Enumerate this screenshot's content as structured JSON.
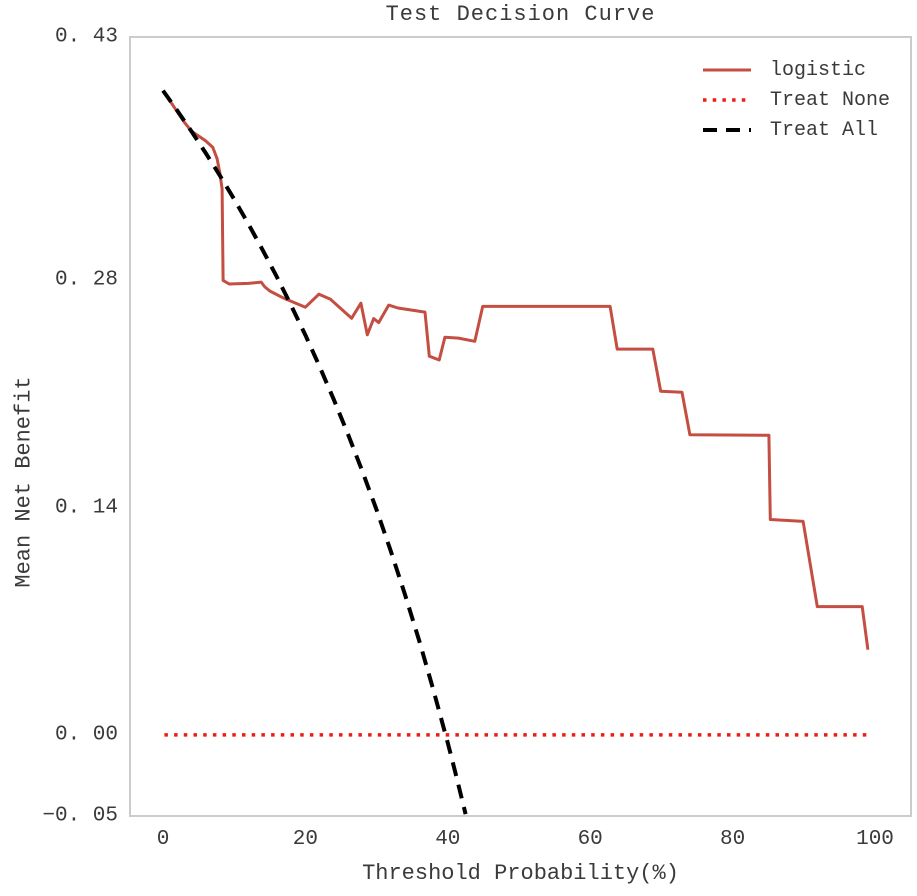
{
  "chart_data": {
    "type": "line",
    "title": "Test Decision Curve",
    "xlabel": "Threshold Probability(%)",
    "ylabel": "Mean Net Benefit",
    "xlim": [
      -4.63,
      105.06
    ],
    "ylim": [
      -0.05,
      0.43
    ],
    "grid": false,
    "legend_position": "upper right",
    "colors": {
      "text": "#3a3a3a",
      "spine": "#cccccc",
      "background": "#ffffff"
    },
    "xticks": [
      {
        "value": 0,
        "label": "0"
      },
      {
        "value": 20,
        "label": "20"
      },
      {
        "value": 40,
        "label": "40"
      },
      {
        "value": 60,
        "label": "60"
      },
      {
        "value": 80,
        "label": "80"
      },
      {
        "value": 100,
        "label": "100"
      }
    ],
    "yticks": [
      {
        "value": 0.43,
        "label": "0. 43"
      },
      {
        "value": 0.28,
        "label": "0. 28"
      },
      {
        "value": 0.14,
        "label": "0. 14"
      },
      {
        "value": 0.0,
        "label": "0. 00"
      },
      {
        "value": -0.05,
        "label": "−0. 05"
      }
    ],
    "series": [
      {
        "name": "logistic",
        "color": "#c44e42",
        "style": "solid",
        "width": 3,
        "points": [
          [
            0,
            0.397
          ],
          [
            1,
            0.3905
          ],
          [
            2,
            0.384
          ],
          [
            3,
            0.3775
          ],
          [
            4,
            0.372
          ],
          [
            5,
            0.369
          ],
          [
            6,
            0.366
          ],
          [
            7,
            0.362
          ],
          [
            7.6,
            0.355
          ],
          [
            8.0,
            0.346
          ],
          [
            8.3,
            0.3364
          ],
          [
            8.45,
            0.28
          ],
          [
            9.3,
            0.2778
          ],
          [
            12,
            0.2782
          ],
          [
            13.8,
            0.279
          ],
          [
            14.3,
            0.276
          ],
          [
            15,
            0.2735
          ],
          [
            17,
            0.269
          ],
          [
            20,
            0.2635
          ],
          [
            21.9,
            0.2715
          ],
          [
            23.5,
            0.2685
          ],
          [
            26.5,
            0.2567
          ],
          [
            27.8,
            0.266
          ],
          [
            28.7,
            0.2465
          ],
          [
            29.6,
            0.2565
          ],
          [
            30.3,
            0.254
          ],
          [
            31.7,
            0.2648
          ],
          [
            33,
            0.263
          ],
          [
            36.8,
            0.2605
          ],
          [
            37.4,
            0.2333
          ],
          [
            38.8,
            0.231
          ],
          [
            39.6,
            0.245
          ],
          [
            41.5,
            0.2445
          ],
          [
            43.8,
            0.2425
          ],
          [
            44.9,
            0.264
          ],
          [
            62.8,
            0.264
          ],
          [
            63.8,
            0.2377
          ],
          [
            68.8,
            0.2377
          ],
          [
            69.9,
            0.2117
          ],
          [
            72.9,
            0.2111
          ],
          [
            74,
            0.1849
          ],
          [
            85.1,
            0.1846
          ],
          [
            85.3,
            0.1327
          ],
          [
            89.9,
            0.1315
          ],
          [
            91.9,
            0.079
          ],
          [
            98.2,
            0.079
          ],
          [
            99,
            0.0525
          ]
        ]
      },
      {
        "name": "Treat None",
        "color": "#ed1c16",
        "style": "dotted",
        "width": 3.5,
        "dash": "3.5 6.2",
        "points": [
          [
            0.2,
            0.0
          ],
          [
            99.5,
            0.0
          ]
        ]
      },
      {
        "name": "Treat All",
        "color": "#000000",
        "style": "dashed",
        "width": 4,
        "dash": "14 9",
        "points": [
          [
            0,
            0.397
          ],
          [
            2,
            0.3847
          ],
          [
            4,
            0.3719
          ],
          [
            6,
            0.3585
          ],
          [
            8,
            0.3446
          ],
          [
            10,
            0.33
          ],
          [
            12,
            0.3148
          ],
          [
            14,
            0.2988
          ],
          [
            16,
            0.2821
          ],
          [
            18,
            0.2646
          ],
          [
            20,
            0.2463
          ],
          [
            22,
            0.2269
          ],
          [
            24,
            0.2066
          ],
          [
            26,
            0.1851
          ],
          [
            28,
            0.1625
          ],
          [
            30,
            0.1386
          ],
          [
            32,
            0.1132
          ],
          [
            34,
            0.0864
          ],
          [
            36,
            0.0578
          ],
          [
            38,
            0.0274
          ],
          [
            40,
            -0.005
          ],
          [
            41,
            -0.0221
          ],
          [
            42.5,
            -0.0488
          ]
        ]
      }
    ]
  }
}
